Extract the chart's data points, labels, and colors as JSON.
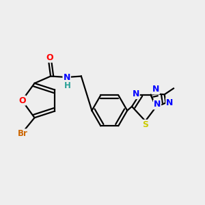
{
  "background_color": "#eeeeee",
  "bond_color": "#000000",
  "atom_colors": {
    "O": "#ff0000",
    "N": "#0000ff",
    "S": "#cccc00",
    "Br": "#cc6600",
    "C": "#000000",
    "H": "#2aa198"
  },
  "figsize": [
    3.0,
    3.0
  ],
  "dpi": 100
}
